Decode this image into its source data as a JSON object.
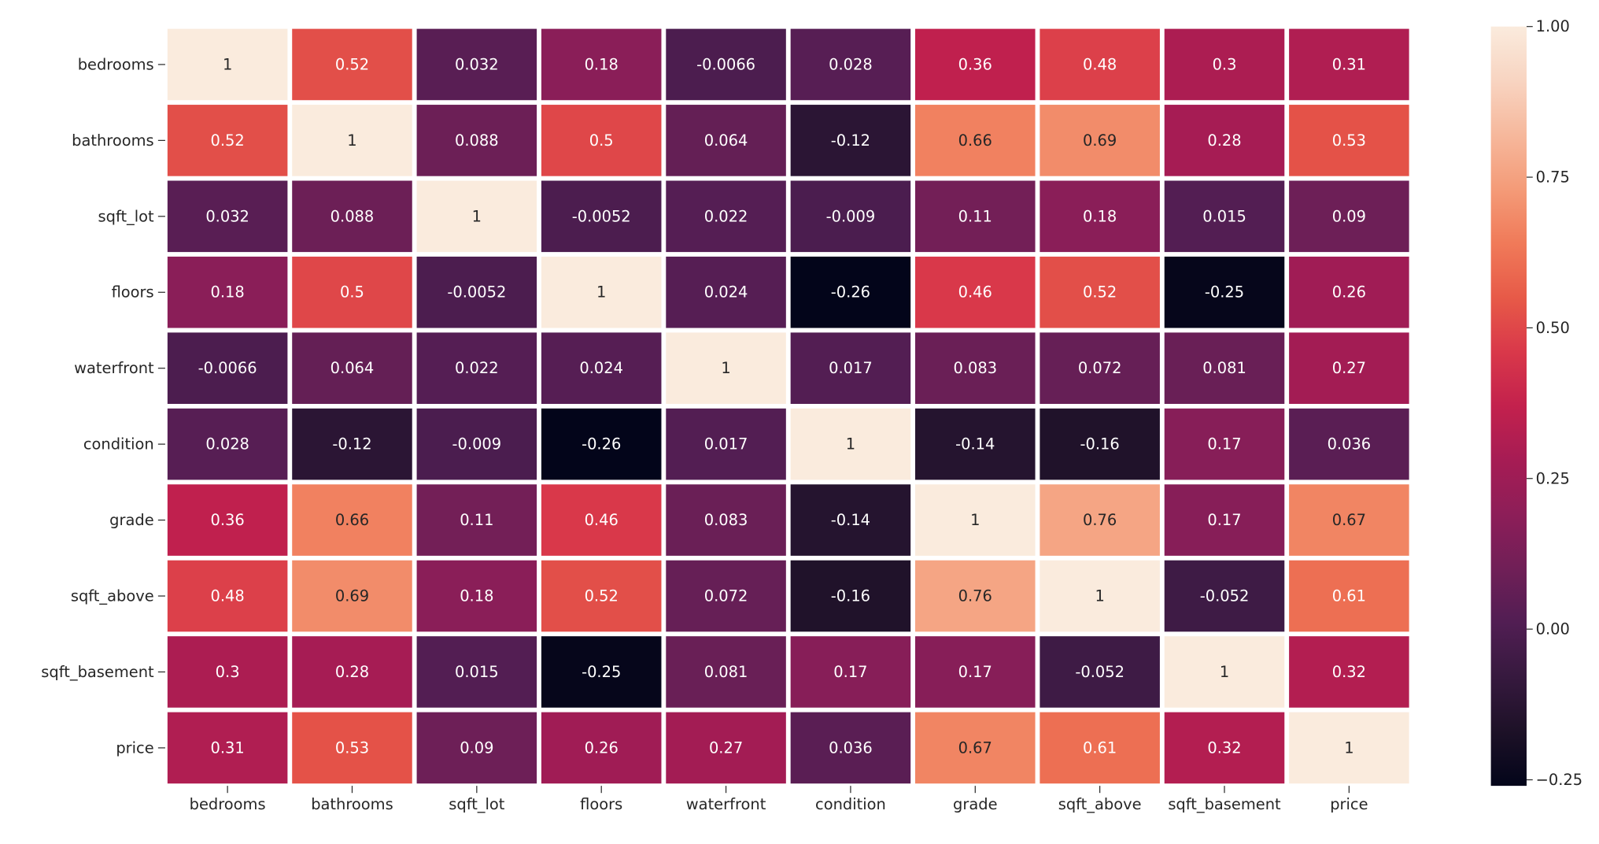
{
  "chart_data": {
    "type": "heatmap",
    "title": "",
    "xlabel": "",
    "ylabel": "",
    "rows": [
      "bedrooms",
      "bathrooms",
      "sqft_lot",
      "floors",
      "waterfront",
      "condition",
      "grade",
      "sqft_above",
      "sqft_basement",
      "price"
    ],
    "columns": [
      "bedrooms",
      "bathrooms",
      "sqft_lot",
      "floors",
      "waterfront",
      "condition",
      "grade",
      "sqft_above",
      "sqft_basement",
      "price"
    ],
    "values": [
      [
        1,
        0.52,
        0.032,
        0.18,
        -0.0066,
        0.028,
        0.36,
        0.48,
        0.3,
        0.31
      ],
      [
        0.52,
        1,
        0.088,
        0.5,
        0.064,
        -0.12,
        0.66,
        0.69,
        0.28,
        0.53
      ],
      [
        0.032,
        0.088,
        1,
        -0.0052,
        0.022,
        -0.009,
        0.11,
        0.18,
        0.015,
        0.09
      ],
      [
        0.18,
        0.5,
        -0.0052,
        1,
        0.024,
        -0.26,
        0.46,
        0.52,
        -0.25,
        0.26
      ],
      [
        -0.0066,
        0.064,
        0.022,
        0.024,
        1,
        0.017,
        0.083,
        0.072,
        0.081,
        0.27
      ],
      [
        0.028,
        -0.12,
        -0.009,
        -0.26,
        0.017,
        1,
        -0.14,
        -0.16,
        0.17,
        0.036
      ],
      [
        0.36,
        0.66,
        0.11,
        0.46,
        0.083,
        -0.14,
        1,
        0.76,
        0.17,
        0.67
      ],
      [
        0.48,
        0.69,
        0.18,
        0.52,
        0.072,
        -0.16,
        0.76,
        1,
        -0.052,
        0.61
      ],
      [
        0.3,
        0.28,
        0.015,
        -0.25,
        0.081,
        0.17,
        0.17,
        -0.052,
        1,
        0.32
      ],
      [
        0.31,
        0.53,
        0.09,
        0.26,
        0.27,
        0.036,
        0.67,
        0.61,
        0.32,
        1
      ]
    ],
    "labels": [
      [
        "1",
        "0.52",
        "0.032",
        "0.18",
        "-0.0066",
        "0.028",
        "0.36",
        "0.48",
        "0.3",
        "0.31"
      ],
      [
        "0.52",
        "1",
        "0.088",
        "0.5",
        "0.064",
        "-0.12",
        "0.66",
        "0.69",
        "0.28",
        "0.53"
      ],
      [
        "0.032",
        "0.088",
        "1",
        "-0.0052",
        "0.022",
        "-0.009",
        "0.11",
        "0.18",
        "0.015",
        "0.09"
      ],
      [
        "0.18",
        "0.5",
        "-0.0052",
        "1",
        "0.024",
        "-0.26",
        "0.46",
        "0.52",
        "-0.25",
        "0.26"
      ],
      [
        "-0.0066",
        "0.064",
        "0.022",
        "0.024",
        "1",
        "0.017",
        "0.083",
        "0.072",
        "0.081",
        "0.27"
      ],
      [
        "0.028",
        "-0.12",
        "-0.009",
        "-0.26",
        "0.017",
        "1",
        "-0.14",
        "-0.16",
        "0.17",
        "0.036"
      ],
      [
        "0.36",
        "0.66",
        "0.11",
        "0.46",
        "0.083",
        "-0.14",
        "1",
        "0.76",
        "0.17",
        "0.67"
      ],
      [
        "0.48",
        "0.69",
        "0.18",
        "0.52",
        "0.072",
        "-0.16",
        "0.76",
        "1",
        "-0.052",
        "0.61"
      ],
      [
        "0.3",
        "0.28",
        "0.015",
        "-0.25",
        "0.081",
        "0.17",
        "0.17",
        "-0.052",
        "1",
        "0.32"
      ],
      [
        "0.31",
        "0.53",
        "0.09",
        "0.26",
        "0.27",
        "0.036",
        "0.67",
        "0.61",
        "0.32",
        "1"
      ]
    ],
    "colorbar": {
      "range": [
        -0.26,
        1.0
      ],
      "ticks": [
        1.0,
        0.75,
        0.5,
        0.25,
        0.0,
        -0.25
      ],
      "tick_labels": [
        "1.00",
        "0.75",
        "0.50",
        "0.25",
        "0.00",
        "−0.25"
      ]
    },
    "colormap": [
      "#03051a",
      "#1d1127",
      "#36193e",
      "#511e53",
      "#701f57",
      "#8d1e58",
      "#a61c54",
      "#c3214d",
      "#d9384a",
      "#e75a48",
      "#f07a59",
      "#f49b78",
      "#f6b89c",
      "#f8d4c1",
      "#faebdd"
    ],
    "grid": false,
    "legend": "colorbar-right"
  }
}
